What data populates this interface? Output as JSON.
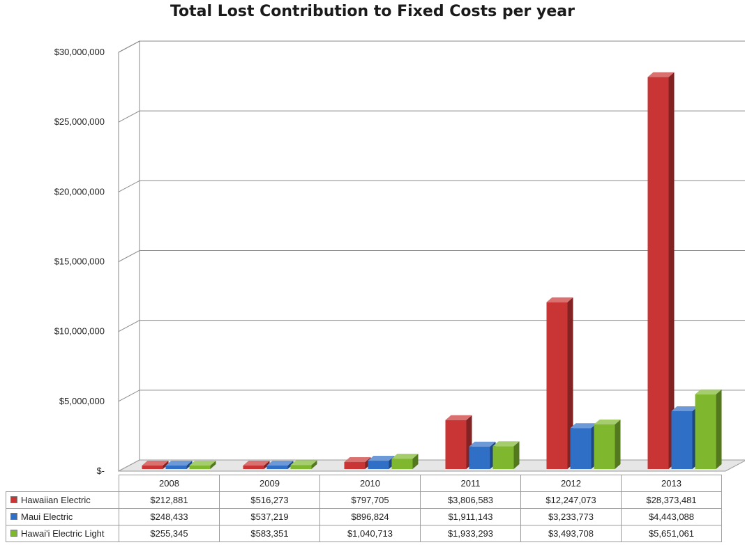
{
  "chart_data": {
    "type": "bar",
    "title": "Total Lost Contribution to Fixed Costs per year",
    "categories": [
      "2008",
      "2009",
      "2010",
      "2011",
      "2012",
      "2013"
    ],
    "series": [
      {
        "name": "Hawaiian Electric",
        "color": "#c93434",
        "values": [
          212881,
          516273,
          797705,
          3806583,
          12247073,
          28373481
        ],
        "labels": [
          "$212,881",
          "$516,273",
          "$797,705",
          "$3,806,583",
          "$12,247,073",
          "$28,373,481"
        ]
      },
      {
        "name": "Maui Electric",
        "color": "#2f6fc6",
        "values": [
          248433,
          537219,
          896824,
          1911143,
          3233773,
          4443088
        ],
        "labels": [
          "$248,433",
          "$537,219",
          "$896,824",
          "$1,911,143",
          "$3,233,773",
          "$4,443,088"
        ]
      },
      {
        "name": "Hawai'i Electric Light",
        "color": "#7fb82e",
        "values": [
          255345,
          583351,
          1040713,
          1933293,
          3493708,
          5651061
        ],
        "labels": [
          "$255,345",
          "$583,351",
          "$1,040,713",
          "$1,933,293",
          "$3,493,708",
          "$5,651,061"
        ]
      }
    ],
    "yticks": [
      "$-",
      "$5,000,000",
      "$10,000,000",
      "$15,000,000",
      "$20,000,000",
      "$25,000,000",
      "$30,000,000"
    ],
    "ylim": [
      0,
      30000000
    ],
    "grid": true,
    "legend": "data-table"
  }
}
